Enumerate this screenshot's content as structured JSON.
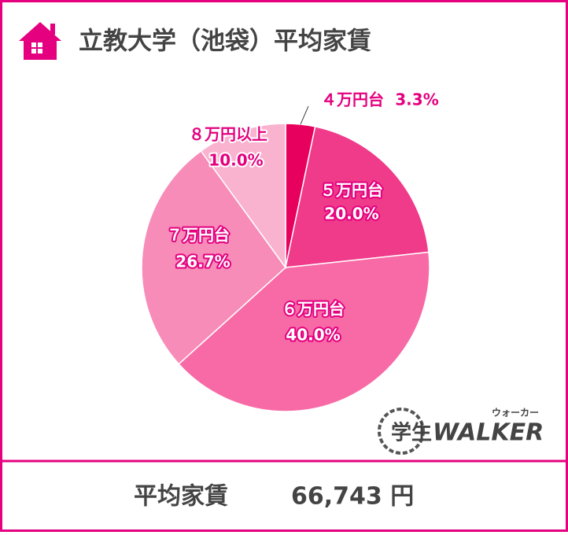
{
  "chart_data": {
    "type": "pie",
    "title": "立教大学（池袋）平均家賃",
    "categories": [
      "４万円台",
      "５万円台",
      "６万円台",
      "７万円台",
      "８万円以上"
    ],
    "values": [
      3.3,
      20.0,
      40.0,
      26.7,
      10.0
    ],
    "value_labels": [
      "3.3%",
      "20.0%",
      "40.0%",
      "26.7%",
      "10.0%"
    ],
    "colors": [
      "#e8005e",
      "#f03a8a",
      "#f76aa6",
      "#f78cb8",
      "#f9b3cf"
    ]
  },
  "footer": {
    "label": "平均家賃",
    "value": "66,743 円"
  },
  "logo": {
    "main": "学生",
    "brand": "WALKER",
    "ruby": "ウォーカー"
  }
}
